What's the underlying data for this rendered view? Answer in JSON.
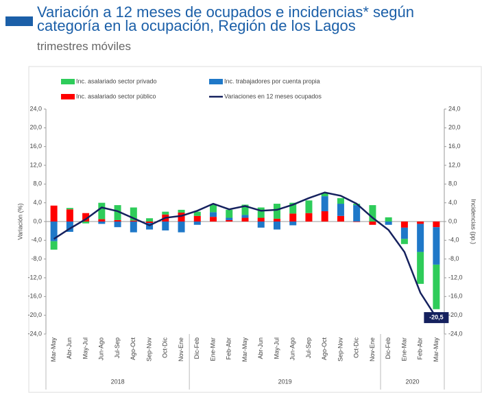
{
  "chart_data": {
    "type": "bar",
    "title": "Variación a 12 meses de ocupados e incidencias* según categoría en la ocupación, Región de los Lagos",
    "subtitle": "trimestres móviles",
    "ylabel": "Variación (%)",
    "y2label": "Incidencias (pp.)",
    "categories": [
      "Mar-May",
      "Abr-Jun",
      "May-Jul",
      "Jun-Ago",
      "Jul-Sep",
      "Ago-Oct",
      "Sep-Nov",
      "Oct-Dic",
      "Nov-Ene",
      "Dic-Feb",
      "Ene-Mar",
      "Feb-Abr",
      "Mar-May",
      "Abr-Jun",
      "May-Jul",
      "Jun-Ago",
      "Jul-Sep",
      "Ago-Oct",
      "Sep-Nov",
      "Oct-Dic",
      "Nov-Ene",
      "Dic-Feb",
      "Ene-Mar",
      "Feb-Abr",
      "Mar-May"
    ],
    "groups": [
      {
        "label": "2018",
        "categories": 9
      },
      {
        "label": "2019",
        "categories": 12
      },
      {
        "label": "2020",
        "categories": 4
      }
    ],
    "series": [
      {
        "name": "Inc. asalariado sector público",
        "color": "#ff0000",
        "axis": "y2",
        "values": [
          3.4,
          2.6,
          1.8,
          0.5,
          0.3,
          0.2,
          -0.3,
          1.5,
          1.9,
          1.2,
          1.0,
          0.3,
          0.8,
          0.8,
          0.6,
          1.7,
          1.8,
          2.2,
          1.2,
          -0.1,
          -0.7,
          0,
          -1.3,
          -0.5,
          -1.2
        ]
      },
      {
        "name": "Inc. trabajadores por cuenta propia",
        "color": "#1f78c8",
        "axis": "y2",
        "values": [
          -4.2,
          -2.2,
          0,
          -0.5,
          -1.2,
          -2.3,
          -1.4,
          -1.9,
          -2.3,
          -0.7,
          1.0,
          0.5,
          0.6,
          -1.3,
          -1.7,
          -0.8,
          0,
          3.2,
          2.6,
          3.5,
          0,
          -0.7,
          -2.4,
          -6.0,
          -8.0
        ]
      },
      {
        "name": "Inc. asalariado sector privado",
        "color": "#2ecc5a",
        "axis": "y2",
        "values": [
          -1.8,
          0.3,
          -0.4,
          3.5,
          3.2,
          2.8,
          0.7,
          0.6,
          0.6,
          0.9,
          1.6,
          1.7,
          2.2,
          2.2,
          3.2,
          2.3,
          2.7,
          0.6,
          1.2,
          0.3,
          3.5,
          0.9,
          -1.1,
          -6.8,
          -9.5
        ]
      },
      {
        "name": "Variaciones en 12 meses ocupados",
        "color": "#15215e",
        "type": "line",
        "values": [
          -3.7,
          -1.5,
          0.5,
          3.0,
          2.2,
          0.7,
          -0.8,
          0.8,
          1.2,
          2.3,
          3.8,
          2.6,
          3.3,
          2.3,
          2.5,
          3.6,
          5.0,
          6.2,
          5.5,
          3.8,
          0.8,
          -1.8,
          -6.5,
          -15.2,
          -20.5
        ],
        "value_labels": [
          null,
          null,
          null,
          null,
          null,
          null,
          null,
          null,
          null,
          null,
          null,
          null,
          null,
          null,
          null,
          null,
          null,
          null,
          null,
          null,
          null,
          null,
          null,
          null,
          "-20,5"
        ]
      }
    ],
    "ylim": [
      -24,
      24
    ],
    "yticks": [
      {
        "value": -24,
        "label": "-24,0"
      },
      {
        "value": -20,
        "label": "-20,0"
      },
      {
        "value": -16,
        "label": "-16,0"
      },
      {
        "value": -12,
        "label": "-12,0"
      },
      {
        "value": -8,
        "label": "-8,0"
      },
      {
        "value": -4,
        "label": "-4,0"
      },
      {
        "value": 0,
        "label": "0,0"
      },
      {
        "value": 4,
        "label": "4,0"
      },
      {
        "value": 8,
        "label": "8,0"
      },
      {
        "value": 12,
        "label": "12,0"
      },
      {
        "value": 16,
        "label": "16,0"
      },
      {
        "value": 20,
        "label": "20,0"
      },
      {
        "value": 24,
        "label": "24,0"
      }
    ],
    "y2lim": [
      -24,
      24
    ],
    "y2ticks": [
      {
        "value": -24,
        "label": "-24,0"
      },
      {
        "value": -20,
        "label": "-20,0"
      },
      {
        "value": -16,
        "label": "-16,0"
      },
      {
        "value": -12,
        "label": "-12,0"
      },
      {
        "value": -8,
        "label": "-8,0"
      },
      {
        "value": -4,
        "label": "-4,0"
      },
      {
        "value": 0,
        "label": "0,0"
      },
      {
        "value": 4,
        "label": "4,0"
      },
      {
        "value": 8,
        "label": "8,0"
      },
      {
        "value": 12,
        "label": "12,0"
      },
      {
        "value": 16,
        "label": "16,0"
      },
      {
        "value": 20,
        "label": "20,0"
      },
      {
        "value": 24,
        "label": "24,0"
      }
    ],
    "grid": false
  }
}
